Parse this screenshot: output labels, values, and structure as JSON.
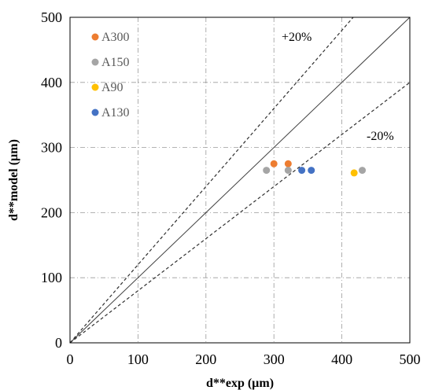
{
  "chart_data": {
    "type": "scatter",
    "xlabel": "d**exp (µm)",
    "ylabel": "d**model (µm)",
    "xlim": [
      0,
      500
    ],
    "ylim": [
      0,
      500
    ],
    "xticks": [
      0,
      100,
      200,
      300,
      400,
      500
    ],
    "yticks": [
      0,
      100,
      200,
      300,
      400,
      500
    ],
    "grid": true,
    "legend_position": "top-left",
    "series": [
      {
        "name": "A300",
        "color": "#ED7D31",
        "points": [
          {
            "x": 300,
            "y": 275
          },
          {
            "x": 321,
            "y": 275
          }
        ]
      },
      {
        "name": "A150",
        "color": "#A5A5A5",
        "points": [
          {
            "x": 289,
            "y": 265
          },
          {
            "x": 321,
            "y": 265
          },
          {
            "x": 430,
            "y": 265
          }
        ]
      },
      {
        "name": "A90",
        "color": "#FFC000",
        "points": [
          {
            "x": 418,
            "y": 261
          }
        ]
      },
      {
        "name": "A130",
        "color": "#4472C4",
        "points": [
          {
            "x": 341,
            "y": 265
          },
          {
            "x": 355,
            "y": 265
          }
        ]
      }
    ],
    "reference_lines": [
      {
        "slope": 1.0,
        "style": "solid"
      },
      {
        "slope": 1.2,
        "style": "dashed"
      },
      {
        "slope": 0.8,
        "style": "dashed"
      }
    ],
    "annotations": {
      "plus": "+20%",
      "minus": "-20%"
    }
  }
}
